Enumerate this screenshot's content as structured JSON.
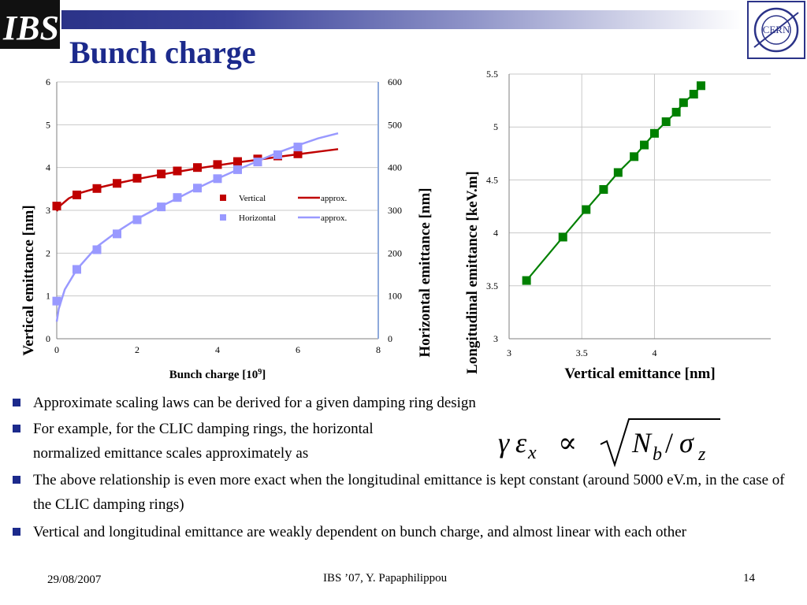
{
  "header": {
    "title": "Bunch charge"
  },
  "logos": {
    "left_text": "IBS",
    "right_text": "CERN"
  },
  "chart_data": [
    {
      "type": "scatter",
      "xlabel": "Bunch charge [10^9]",
      "xlabel_main": "Bunch charge [10",
      "xlabel_sup": "9",
      "xlabel_end": "]",
      "ylabel": "Vertical emittance [nm]",
      "y2label": "Horizontal emittance [nm]",
      "xlim": [
        0,
        8
      ],
      "ylim": [
        0,
        6
      ],
      "y2lim": [
        0,
        600
      ],
      "xticks": [
        "0",
        "2",
        "4",
        "6",
        "8"
      ],
      "yticks": [
        "0",
        "1",
        "2",
        "3",
        "4",
        "5",
        "6"
      ],
      "y2ticks": [
        "0",
        "100",
        "200",
        "300",
        "400",
        "500",
        "600"
      ],
      "legend_position": "center-right",
      "colors": {
        "vertical": "#c00000",
        "horizontal": "#9999ff",
        "axis_right": "#8ea9db"
      },
      "series": [
        {
          "name": "Vertical",
          "axis": "left",
          "marker": "square",
          "x": [
            0.0,
            0.5,
            1.0,
            1.5,
            2.0,
            2.6,
            3.0,
            3.5,
            4.0,
            4.5,
            5.0,
            5.5,
            6.0
          ],
          "y": [
            3.1,
            3.36,
            3.51,
            3.63,
            3.75,
            3.85,
            3.92,
            4.0,
            4.07,
            4.14,
            4.2,
            4.27,
            4.32
          ]
        },
        {
          "name": "approx.",
          "axis": "left",
          "line": true,
          "x": [
            0.0,
            0.1,
            0.3,
            0.6,
            1.0,
            1.5,
            2.0,
            2.5,
            3.0,
            3.5,
            4.0,
            4.5,
            5.0,
            5.5,
            6.0,
            6.5,
            7.0
          ],
          "y": [
            2.98,
            3.12,
            3.28,
            3.41,
            3.52,
            3.63,
            3.73,
            3.82,
            3.9,
            3.98,
            4.05,
            4.12,
            4.18,
            4.25,
            4.31,
            4.37,
            4.43
          ]
        },
        {
          "name": "Horizontal",
          "axis": "right",
          "marker": "square",
          "x": [
            0.0,
            0.5,
            1.0,
            1.5,
            2.0,
            2.6,
            3.0,
            3.5,
            4.0,
            4.5,
            5.0,
            5.5,
            6.0
          ],
          "y": [
            88,
            162,
            208,
            245,
            278,
            308,
            330,
            352,
            374,
            395,
            413,
            430,
            448
          ]
        },
        {
          "name": "approx.",
          "axis": "right",
          "line": true,
          "x": [
            0.0,
            0.05,
            0.2,
            0.5,
            1.0,
            1.5,
            2.0,
            2.5,
            3.0,
            3.5,
            4.0,
            4.5,
            5.0,
            5.5,
            6.0,
            6.5,
            7.0
          ],
          "y": [
            40,
            70,
            115,
            162,
            215,
            250,
            280,
            305,
            328,
            352,
            374,
            395,
            415,
            435,
            452,
            468,
            480
          ]
        }
      ]
    },
    {
      "type": "scatter",
      "xlabel": "Vertical emittance [nm]",
      "ylabel": "Longitudinal emittance [keV.m]",
      "xlim": [
        3,
        4.8
      ],
      "ylim": [
        3,
        5.5
      ],
      "xticks": [
        "3",
        "3.5",
        "4"
      ],
      "yticks": [
        "3",
        "3.5",
        "4",
        "4.5",
        "5",
        "5.5"
      ],
      "colors": {
        "series": "#008000"
      },
      "series": [
        {
          "name": "",
          "marker": "square",
          "line": true,
          "x": [
            3.12,
            3.37,
            3.53,
            3.65,
            3.75,
            3.86,
            3.93,
            4.0,
            4.08,
            4.15,
            4.2,
            4.27,
            4.32
          ],
          "y": [
            3.55,
            3.96,
            4.22,
            4.41,
            4.57,
            4.72,
            4.83,
            4.94,
            5.05,
            5.14,
            5.23,
            5.31,
            5.39
          ]
        }
      ]
    }
  ],
  "bullets": [
    "Approximate scaling laws can be derived for a given damping ring design",
    "For example, for the CLIC damping rings, the horizontal normalized emittance scales approximately as",
    "The above relationship is even more exact when the longitudinal emittance is kept constant (around 5000 eV.m, in the case of the CLIC damping rings)",
    "Vertical and longitudinal emittance are weakly dependent on bunch charge, and almost linear with each other"
  ],
  "bullet2_line1": "For example, for the CLIC damping rings, the horizontal",
  "bullet2_line2": "normalized emittance scales approximately as",
  "formula": {
    "lhs_gamma": "γ",
    "lhs_eps": "ε",
    "lhs_sub": "x",
    "prop": "∝",
    "num": "N",
    "num_sub": "b",
    "slash": "/",
    "den": "σ",
    "den_sub": "z"
  },
  "footer": {
    "date": "29/08/2007",
    "center": "IBS ’07,  Y. Papaphilippou",
    "page": "14"
  }
}
